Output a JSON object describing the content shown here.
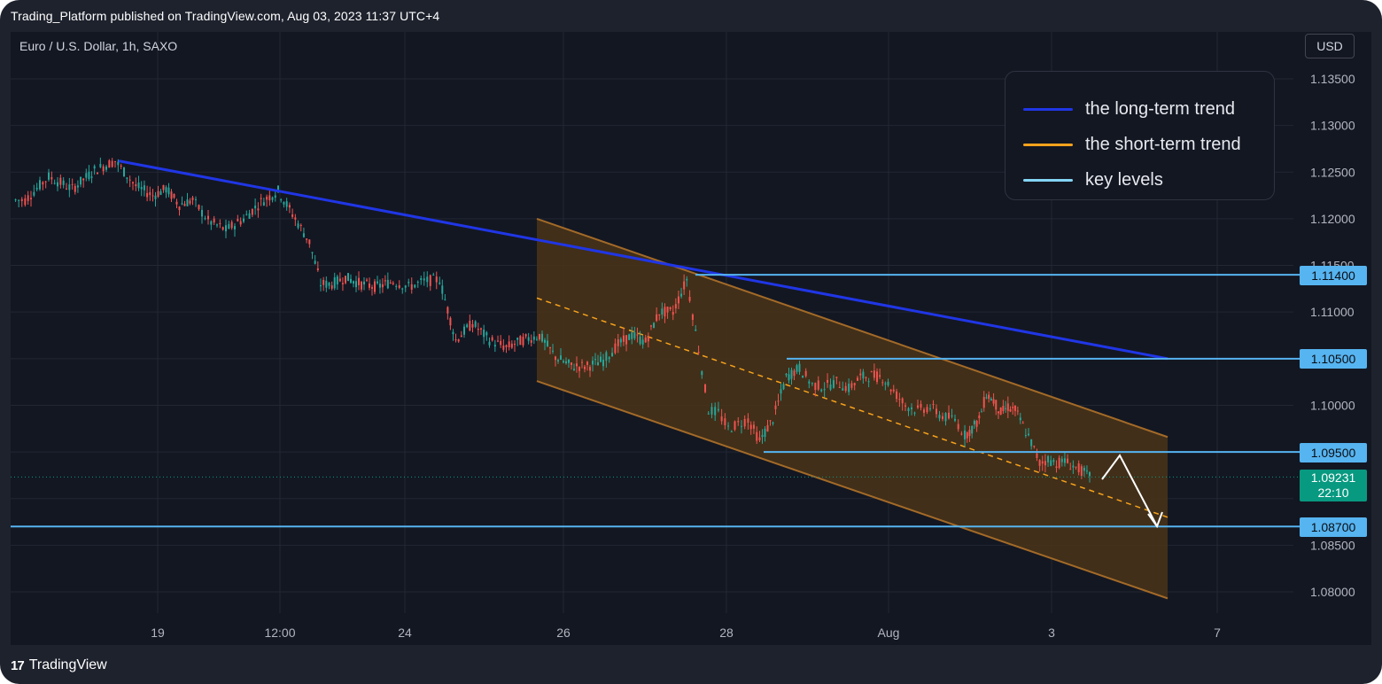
{
  "header": {
    "published": "Trading_Platform published on TradingView.com, Aug 03, 2023 11:37 UTC+4"
  },
  "symbol": {
    "title": "Euro / U.S. Dollar, 1h, SAXO"
  },
  "currency": "USD",
  "footer": {
    "brand": "TradingView"
  },
  "legend": [
    {
      "label": "the long-term trend",
      "color": "#2036e6"
    },
    {
      "label": "the short-term trend",
      "color": "#f7a21b"
    },
    {
      "label": "key levels",
      "color": "#56b4f0"
    }
  ],
  "level_tags": [
    {
      "value": "1.11400"
    },
    {
      "value": "1.10500"
    },
    {
      "value": "1.09500"
    },
    {
      "value": "1.08700"
    }
  ],
  "last_price": {
    "value": "1.09231",
    "countdown": "22:10",
    "color": "#089981"
  },
  "colors": {
    "up": "#26a69a",
    "down": "#ef5350",
    "channel_fill": "#4a3418",
    "channel_edge": "#a36a28",
    "background": "#131722"
  },
  "chart_data": {
    "type": "candlestick",
    "symbol": "Euro / U.S. Dollar, 1h, SAXO",
    "x_tick_labels": [
      "19",
      "12:00",
      "24",
      "26",
      "28",
      "Aug",
      "3",
      "7"
    ],
    "y_tick_labels": [
      "1.13500",
      "1.13000",
      "1.12500",
      "1.12000",
      "1.11500",
      "1.11000",
      "1.10000",
      "1.08500",
      "1.08000"
    ],
    "ylim": [
      1.0765,
      1.1385
    ],
    "grid": true,
    "legend_position": "top-right",
    "price_path": [
      [
        "Jul 17",
        1.122
      ],
      [
        "Jul 17",
        1.1245
      ],
      [
        "Jul 17",
        1.1232
      ],
      [
        "Jul 18",
        1.1252
      ],
      [
        "Jul 18",
        1.1262
      ],
      [
        "Jul 18",
        1.1235
      ],
      [
        "Jul 19",
        1.1225
      ],
      [
        "Jul 19",
        1.1232
      ],
      [
        "Jul 19",
        1.1215
      ],
      [
        "Jul 19",
        1.122
      ],
      [
        "Jul 20",
        1.1198
      ],
      [
        "Jul 20",
        1.1188
      ],
      [
        "Jul 20",
        1.12
      ],
      [
        "Jul 21",
        1.1218
      ],
      [
        "Jul 21",
        1.123
      ],
      [
        "Jul 21",
        1.12
      ],
      [
        "Jul 22",
        1.1175
      ],
      [
        "Jul 22",
        1.113
      ],
      [
        "Jul 22",
        1.113
      ],
      [
        "Jul 23",
        1.1137
      ],
      [
        "Jul 23",
        1.113
      ],
      [
        "Jul 23",
        1.1127
      ],
      [
        "Jul 24",
        1.1133
      ],
      [
        "Jul 24",
        1.1127
      ],
      [
        "Jul 24",
        1.1133
      ],
      [
        "Jul 24",
        1.1135
      ],
      [
        "Jul 25",
        1.107
      ],
      [
        "Jul 25",
        1.1088
      ],
      [
        "Jul 25",
        1.107
      ],
      [
        "Jul 25",
        1.1062
      ],
      [
        "Jul 25",
        1.107
      ],
      [
        "Jul 26",
        1.1075
      ],
      [
        "Jul 26",
        1.1052
      ],
      [
        "Jul 26",
        1.1042
      ],
      [
        "Jul 26",
        1.1042
      ],
      [
        "Jul 26",
        1.1048
      ],
      [
        "Jul 27",
        1.1065
      ],
      [
        "Jul 27",
        1.1075
      ],
      [
        "Jul 27",
        1.1068
      ],
      [
        "Jul 27",
        1.11
      ],
      [
        "Jul 27",
        1.11
      ],
      [
        "Jul 27",
        1.1135
      ],
      [
        "Jul 28",
        1.106
      ],
      [
        "Jul 28",
        1.0995
      ],
      [
        "Jul 28",
        1.0992
      ],
      [
        "Jul 28",
        1.0975
      ],
      [
        "Jul 28",
        1.098
      ],
      [
        "Jul 28",
        1.0985
      ],
      [
        "Jul 29",
        1.0962
      ],
      [
        "Jul 29",
        1.0985
      ],
      [
        "Jul 29",
        1.103
      ],
      [
        "Jul 29",
        1.104
      ],
      [
        "Jul 30",
        1.1022
      ],
      [
        "Jul 30",
        1.102
      ],
      [
        "Jul 30",
        1.1025
      ],
      [
        "Jul 30",
        1.1018
      ],
      [
        "Jul 31",
        1.103
      ],
      [
        "Jul 31",
        1.1032
      ],
      [
        "Jul 31",
        1.103
      ],
      [
        "Jul 31",
        1.1015
      ],
      [
        "Aug 1",
        1.1
      ],
      [
        "Aug 1",
        1.0995
      ],
      [
        "Aug 1",
        1.0998
      ],
      [
        "Aug 1",
        1.0988
      ],
      [
        "Aug 1",
        1.0985
      ],
      [
        "Aug 2",
        1.0968
      ],
      [
        "Aug 2",
        1.0975
      ],
      [
        "Aug 2",
        1.0985
      ],
      [
        "Aug 2",
        1.1012
      ],
      [
        "Aug 2",
        1.1005
      ],
      [
        "Aug 2",
        1.0992
      ],
      [
        "Aug 2",
        1.0998
      ],
      [
        "Aug 2",
        1.0995
      ],
      [
        "Aug 3",
        1.0978
      ],
      [
        "Aug 3",
        1.096
      ],
      [
        "Aug 3",
        1.0938
      ],
      [
        "Aug 3",
        1.0942
      ],
      [
        "Aug 3",
        1.0938
      ],
      [
        "Aug 3",
        1.094
      ],
      [
        "Aug 3",
        1.0935
      ],
      [
        "Aug 3",
        1.093
      ],
      [
        "Aug 3",
        1.0923
      ]
    ],
    "lines": [
      {
        "name": "the long-term trend",
        "from": [
          "Jul 18",
          1.1262
        ],
        "to": [
          "Aug 4",
          1.105
        ]
      },
      {
        "name": "the short-term trend",
        "channel_top": [
          [
            "Jul 26",
            1.12
          ],
          [
            "Aug 4",
            1.0966
          ]
        ],
        "channel_bottom": [
          [
            "Jul 26",
            1.1026
          ],
          [
            "Aug 4",
            1.0793
          ]
        ],
        "midline": [
          [
            "Jul 26",
            1.1115
          ],
          [
            "Aug 4",
            1.088
          ]
        ]
      }
    ],
    "key_levels": [
      1.114,
      1.105,
      1.095,
      1.087
    ],
    "last_price": 1.09231,
    "projection": [
      [
        "Aug 3",
        1.092
      ],
      [
        "Aug 3",
        1.0955
      ],
      [
        "Aug 4",
        1.087
      ]
    ]
  }
}
